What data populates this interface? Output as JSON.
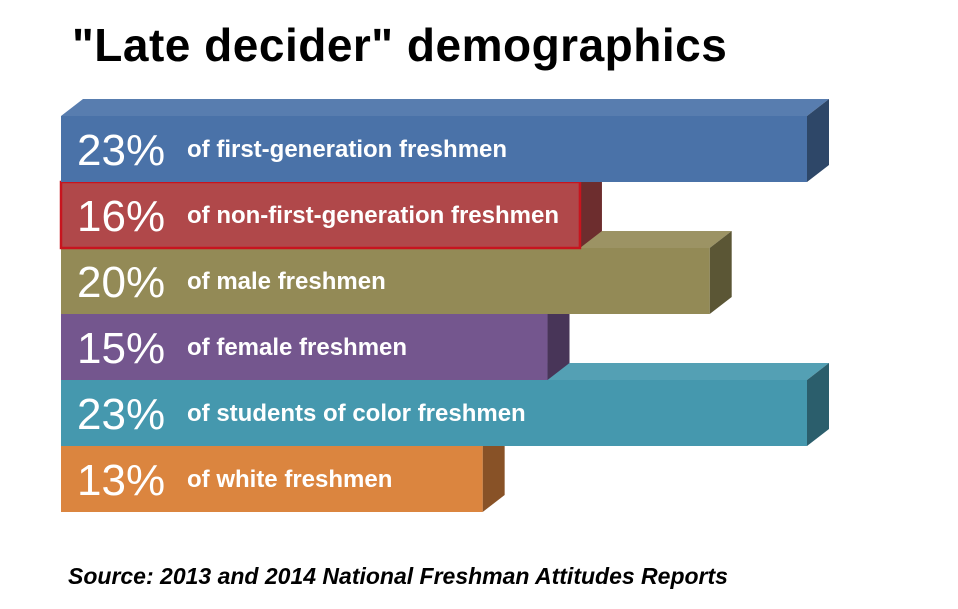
{
  "title": "\"Late decider\" demographics",
  "source": "Source: 2013 and 2014 National Freshman Attitudes Reports",
  "chart_data": {
    "type": "bar",
    "orientation": "horizontal",
    "title": "\"Late decider\" demographics",
    "xlim": [
      0,
      23
    ],
    "grid": false,
    "bars": [
      {
        "value": 23,
        "value_label": "23%",
        "label": "of first-generation freshmen",
        "color": "#4A72A8",
        "highlighted": false
      },
      {
        "value": 16,
        "value_label": "16%",
        "label": "of non-first-generation freshmen",
        "color": "#B0484A",
        "highlighted": true
      },
      {
        "value": 20,
        "value_label": "20%",
        "label": "of male freshmen",
        "color": "#938A56",
        "highlighted": false
      },
      {
        "value": 15,
        "value_label": "15%",
        "label": "of female freshmen",
        "color": "#74568E",
        "highlighted": false
      },
      {
        "value": 23,
        "value_label": "23%",
        "label": "of students of color freshmen",
        "color": "#4598AE",
        "highlighted": false
      },
      {
        "value": 13,
        "value_label": "13%",
        "label": "of white freshmen",
        "color": "#DB853F",
        "highlighted": false
      }
    ]
  }
}
